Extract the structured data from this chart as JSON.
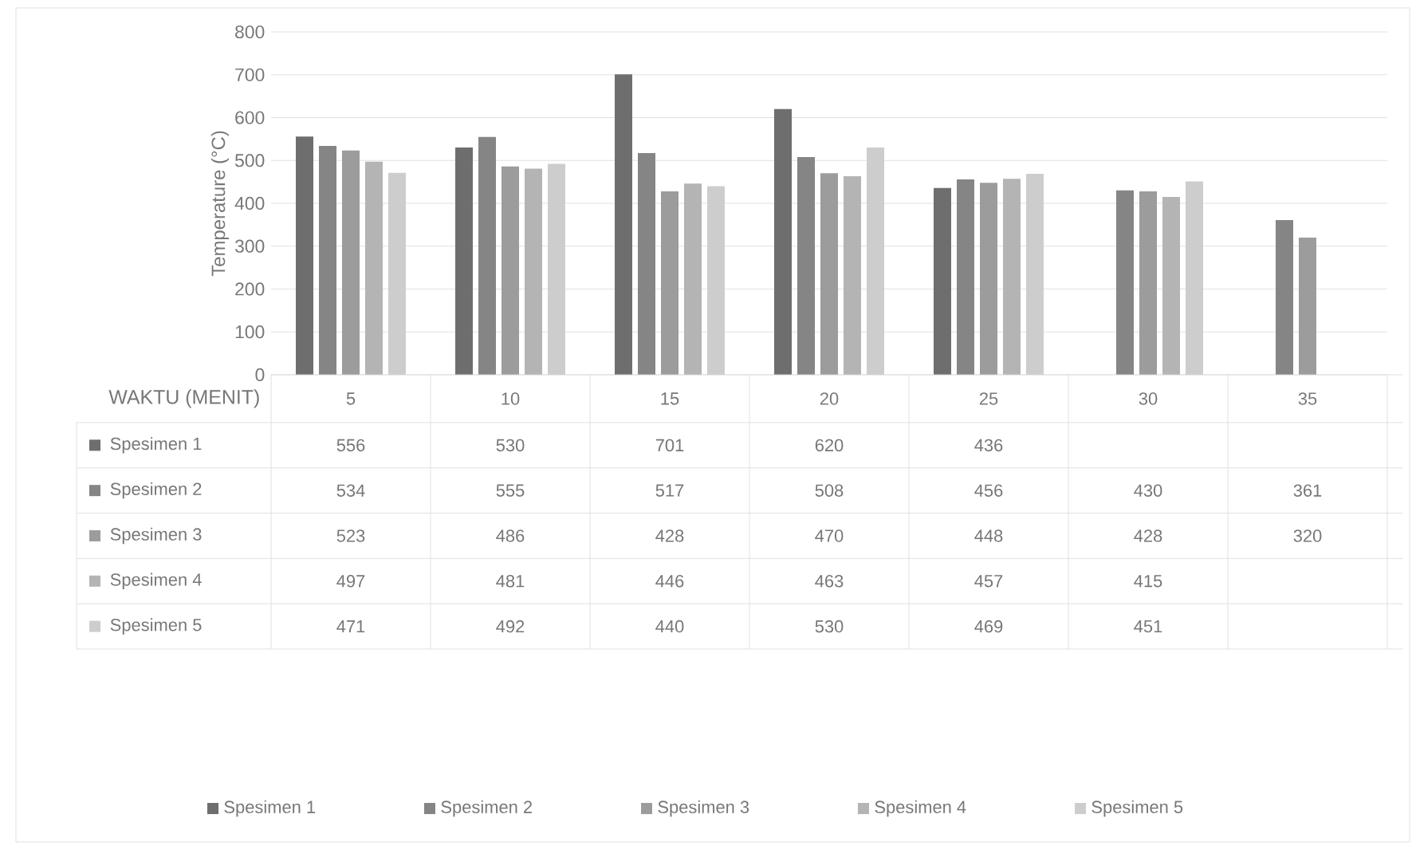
{
  "chart_data": {
    "type": "bar",
    "xlabel": "WAKTU (MENIT)",
    "ylabel": "Temperature (°C)",
    "categories": [
      "5",
      "10",
      "15",
      "20",
      "25",
      "30",
      "35"
    ],
    "series": [
      {
        "name": "Spesimen 1",
        "color": "#6e6e6e",
        "values": [
          556,
          530,
          701,
          620,
          436,
          null,
          null
        ]
      },
      {
        "name": "Spesimen 2",
        "color": "#858585",
        "values": [
          534,
          555,
          517,
          508,
          456,
          430,
          361
        ]
      },
      {
        "name": "Spesimen 3",
        "color": "#9c9c9c",
        "values": [
          523,
          486,
          428,
          470,
          448,
          428,
          320
        ]
      },
      {
        "name": "Spesimen 4",
        "color": "#b4b4b4",
        "values": [
          497,
          481,
          446,
          463,
          457,
          415,
          null
        ]
      },
      {
        "name": "Spesimen 5",
        "color": "#cdcdcd",
        "values": [
          471,
          492,
          440,
          530,
          469,
          451,
          null
        ]
      }
    ],
    "ylim": [
      0,
      800
    ],
    "yticks": [
      0,
      100,
      200,
      300,
      400,
      500,
      600,
      700,
      800
    ],
    "grid": "y",
    "legend": "bottom",
    "data_labels": true
  }
}
